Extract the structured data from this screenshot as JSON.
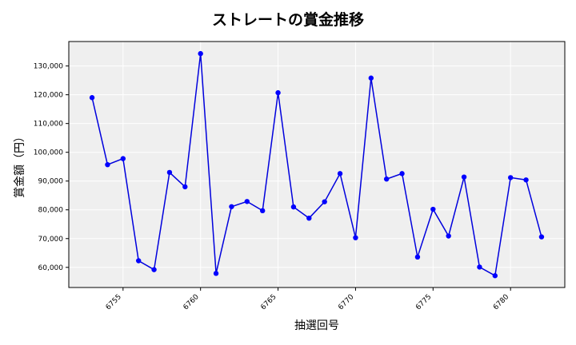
{
  "chart_data": {
    "type": "line",
    "title": "ストレートの賞金推移",
    "xlabel": "抽選回号",
    "ylabel": "賞金額（円）",
    "x": [
      6753,
      6754,
      6755,
      6756,
      6757,
      6758,
      6759,
      6760,
      6761,
      6762,
      6763,
      6764,
      6765,
      6766,
      6767,
      6768,
      6769,
      6770,
      6771,
      6772,
      6773,
      6774,
      6775,
      6776,
      6777,
      6778,
      6779,
      6780,
      6781,
      6782
    ],
    "series": [
      {
        "values": [
          119000,
          95700,
          97800,
          62300,
          59200,
          93000,
          88000,
          134300,
          57900,
          81100,
          82900,
          79700,
          120700,
          81000,
          77100,
          82800,
          92600,
          70300,
          125800,
          90700,
          92600,
          63600,
          80200,
          70900,
          91400,
          60100,
          57100,
          91200,
          90400,
          70600
        ]
      }
    ],
    "xlim": [
      6751.5,
      6783.5
    ],
    "ylim": [
      53000,
      138500
    ],
    "xticks": [
      6755,
      6760,
      6765,
      6770,
      6775,
      6780
    ],
    "yticks": [
      60000,
      70000,
      80000,
      90000,
      100000,
      110000,
      120000,
      130000
    ],
    "ytick_labels": [
      "60,000",
      "70,000",
      "80,000",
      "90,000",
      "100,000",
      "110,000",
      "120,000",
      "130,000"
    ],
    "grid": true,
    "colors": {
      "line": "#0000dd",
      "marker": "#0000ff",
      "plot_bg": "#efefef",
      "grid": "#ffffff"
    }
  }
}
